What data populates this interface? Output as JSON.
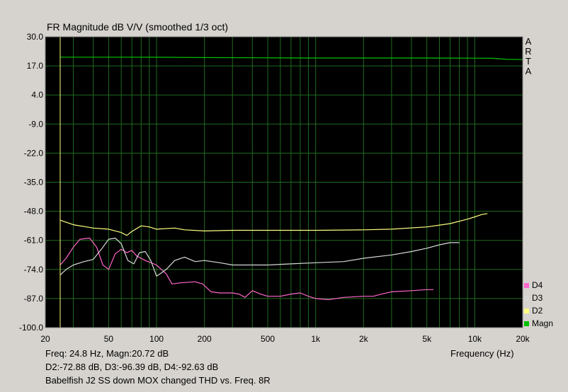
{
  "chart_data": {
    "type": "line",
    "title": "FR Magnitude dB V/V (smoothed 1/3 oct)",
    "brand": [
      "A",
      "R",
      "T",
      "A"
    ],
    "xlabel": "Frequency (Hz)",
    "xscale": "log",
    "xlim": [
      20,
      20000
    ],
    "ylim": [
      -100,
      30
    ],
    "grid": true,
    "legend_position": "bottom-right",
    "background": "#000000",
    "grid_color": "#1f6b1f",
    "y_ticks": [
      "30.0",
      "17.0",
      "4.0",
      "-9.0",
      "-22.0",
      "-35.0",
      "-48.0",
      "-61.0",
      "-74.0",
      "-87.0",
      "-100.0"
    ],
    "y_tick_values": [
      30,
      17,
      4,
      -9,
      -22,
      -35,
      -48,
      -61,
      -74,
      -87,
      -100
    ],
    "x_ticks": [
      "20",
      "50",
      "100",
      "200",
      "500",
      "1k",
      "2k",
      "5k",
      "10k",
      "20k"
    ],
    "x_tick_values": [
      20,
      50,
      100,
      200,
      500,
      1000,
      2000,
      5000,
      10000,
      20000
    ],
    "cursor_x": 24.8,
    "series": [
      {
        "name": "Magn",
        "color": "#00c000",
        "points": [
          [
            24.8,
            20.9
          ],
          [
            50,
            20.9
          ],
          [
            100,
            20.85
          ],
          [
            200,
            20.7
          ],
          [
            500,
            20.6
          ],
          [
            1000,
            20.5
          ],
          [
            2000,
            20.5
          ],
          [
            5000,
            20.5
          ],
          [
            10000,
            20.45
          ],
          [
            13000,
            20.4
          ],
          [
            16000,
            19.9
          ],
          [
            20000,
            19.8
          ]
        ]
      },
      {
        "name": "D2",
        "color": "#ffff80",
        "points": [
          [
            24.8,
            -52.0
          ],
          [
            30,
            -54.0
          ],
          [
            40,
            -55.5
          ],
          [
            50,
            -56.0
          ],
          [
            60,
            -57.5
          ],
          [
            65,
            -58.8
          ],
          [
            70,
            -57.0
          ],
          [
            80,
            -54.5
          ],
          [
            90,
            -55.0
          ],
          [
            100,
            -56.0
          ],
          [
            130,
            -55.5
          ],
          [
            150,
            -56.3
          ],
          [
            200,
            -56.8
          ],
          [
            300,
            -56.5
          ],
          [
            500,
            -56.5
          ],
          [
            1000,
            -56.5
          ],
          [
            2000,
            -56.3
          ],
          [
            3000,
            -56.0
          ],
          [
            5000,
            -55.0
          ],
          [
            7000,
            -53.5
          ],
          [
            9000,
            -51.5
          ],
          [
            10000,
            -50.5
          ],
          [
            11000,
            -49.5
          ],
          [
            12000,
            -49.0
          ]
        ]
      },
      {
        "name": "D3",
        "color": "#d8d8d8",
        "points": [
          [
            24.8,
            -76.5
          ],
          [
            27,
            -74.0
          ],
          [
            30,
            -72.0
          ],
          [
            35,
            -70.5
          ],
          [
            40,
            -69.5
          ],
          [
            45,
            -65.0
          ],
          [
            50,
            -60.5
          ],
          [
            55,
            -60.0
          ],
          [
            60,
            -62.5
          ],
          [
            66,
            -70.0
          ],
          [
            72,
            -71.5
          ],
          [
            78,
            -66.5
          ],
          [
            85,
            -66.0
          ],
          [
            92,
            -70.0
          ],
          [
            100,
            -77.0
          ],
          [
            105,
            -76.0
          ],
          [
            115,
            -74.0
          ],
          [
            130,
            -70.0
          ],
          [
            150,
            -68.5
          ],
          [
            175,
            -70.5
          ],
          [
            200,
            -70.0
          ],
          [
            250,
            -71.0
          ],
          [
            300,
            -72.0
          ],
          [
            500,
            -72.0
          ],
          [
            700,
            -71.5
          ],
          [
            1000,
            -71.0
          ],
          [
            1500,
            -70.5
          ],
          [
            2000,
            -69.0
          ],
          [
            3000,
            -67.5
          ],
          [
            4000,
            -66.0
          ],
          [
            5000,
            -64.5
          ],
          [
            6000,
            -63.0
          ],
          [
            7000,
            -62.0
          ],
          [
            8000,
            -62.0
          ]
        ]
      },
      {
        "name": "D4",
        "color": "#ff66cc",
        "points": [
          [
            24.8,
            -72.0
          ],
          [
            27,
            -69.0
          ],
          [
            30,
            -64.0
          ],
          [
            33,
            -60.5
          ],
          [
            38,
            -60.0
          ],
          [
            42,
            -64.0
          ],
          [
            46,
            -72.0
          ],
          [
            50,
            -74.0
          ],
          [
            55,
            -67.0
          ],
          [
            60,
            -65.0
          ],
          [
            65,
            -66.5
          ],
          [
            70,
            -65.5
          ],
          [
            75,
            -68.0
          ],
          [
            85,
            -70.0
          ],
          [
            100,
            -72.0
          ],
          [
            115,
            -76.0
          ],
          [
            125,
            -80.5
          ],
          [
            140,
            -80.0
          ],
          [
            175,
            -79.5
          ],
          [
            195,
            -80.5
          ],
          [
            220,
            -84.0
          ],
          [
            250,
            -84.5
          ],
          [
            300,
            -84.5
          ],
          [
            330,
            -85.0
          ],
          [
            360,
            -86.5
          ],
          [
            400,
            -83.5
          ],
          [
            450,
            -85.0
          ],
          [
            500,
            -86.0
          ],
          [
            600,
            -86.0
          ],
          [
            700,
            -85.0
          ],
          [
            800,
            -84.5
          ],
          [
            900,
            -86.0
          ],
          [
            1000,
            -87.0
          ],
          [
            1200,
            -87.5
          ],
          [
            1500,
            -86.5
          ],
          [
            2000,
            -86.0
          ],
          [
            2300,
            -86.0
          ],
          [
            2600,
            -85.0
          ],
          [
            3000,
            -84.0
          ],
          [
            4000,
            -83.5
          ],
          [
            5000,
            -83.0
          ],
          [
            5500,
            -83.0
          ]
        ]
      }
    ]
  },
  "legend": [
    {
      "label": "D4",
      "color": "#ff66cc"
    },
    {
      "label": "D3",
      "color": "#d8d8d8"
    },
    {
      "label": "D2",
      "color": "#ffff80"
    },
    {
      "label": "Magn",
      "color": "#00c000"
    }
  ],
  "readout": {
    "line1": "Freq: 24.8 Hz, Magn:20.72 dB",
    "line2": "D2:-72.88 dB, D3:-96.39 dB, D4:-92.63 dB"
  },
  "caption": "Babelfish J2 SS down MOX changed THD vs.  Freq. 8R"
}
